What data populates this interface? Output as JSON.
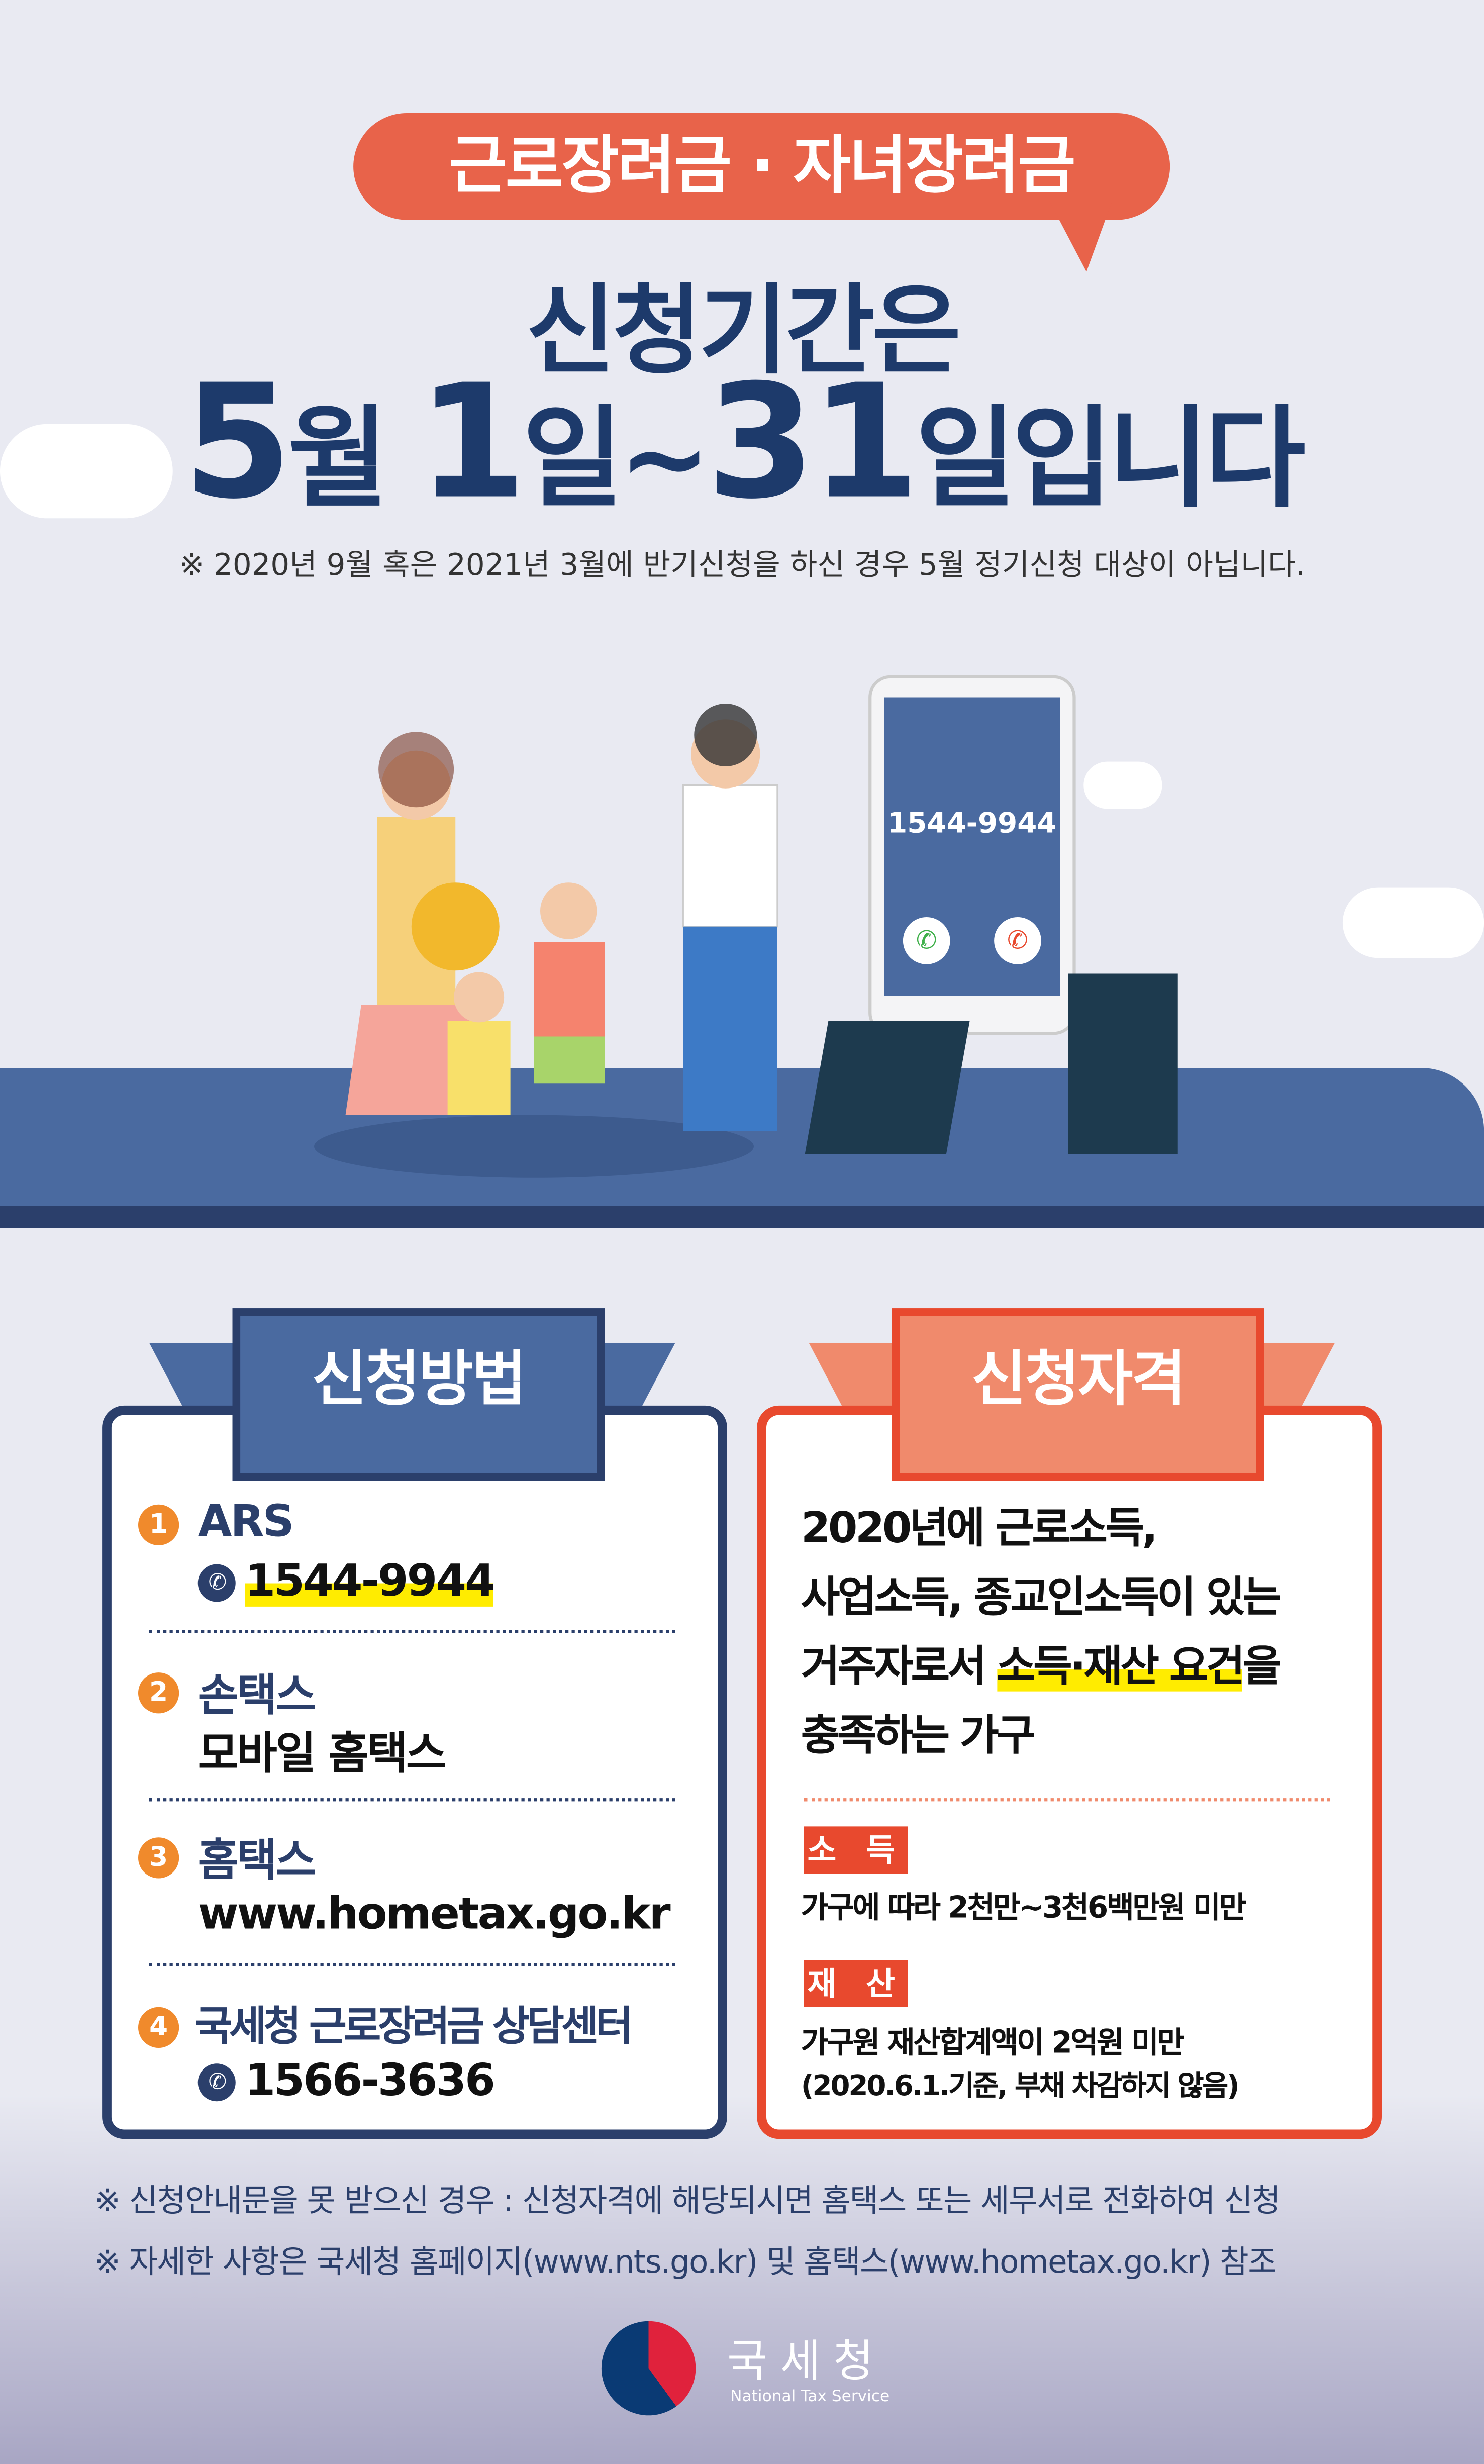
{
  "header": {
    "bubble": "근로장려금 · 자녀장려금",
    "title_line1": "신청기간은",
    "period": {
      "m": "5",
      "m_unit": "월",
      "d1": "1",
      "d1_unit": "일~",
      "d2": "31",
      "d2_unit": "일입니다"
    },
    "note": "※ 2020년 9월 혹은 2021년 3월에 반기신청을 하신 경우 5월 정기신청 대상이 아닙니다."
  },
  "illustration": {
    "phone_number": "1544-9944"
  },
  "method": {
    "title": "신청방법",
    "items": [
      {
        "num": "1",
        "title": "ARS",
        "detail": "1544-9944",
        "icon": "phone-icon"
      },
      {
        "num": "2",
        "title": "손택스",
        "detail": "모바일 홈택스"
      },
      {
        "num": "3",
        "title": "홈택스",
        "detail": "www.hometax.go.kr"
      },
      {
        "num": "4",
        "title": "국세청 근로장려금 상담센터",
        "detail": "1566-3636",
        "icon": "phone-icon"
      }
    ]
  },
  "eligibility": {
    "title": "신청자격",
    "line1": "2020년에 근로소득,",
    "line2": "사업소득, 종교인소득이 있는",
    "line3_pre": "거주자로서 ",
    "line3_hl": "소득·재산 요건",
    "line3_post": "을",
    "line4": "충족하는 가구",
    "income_tag": "소 득",
    "income_text": "가구에 따라 2천만~3천6백만원 미만",
    "asset_tag": "재 산",
    "asset_text": "가구원 재산합계액이 2억원 미만",
    "asset_note": "(2020.6.1.기준, 부채 차감하지 않음)"
  },
  "footer": {
    "note1": "※ 신청안내문을 못 받으신 경우 : 신청자격에 해당되시면 홈택스 또는 세무서로 전화하여 신청",
    "note2": "※ 자세한 사항은 국세청 홈페이지(www.nts.go.kr) 및 홈택스(www.hometax.go.kr) 참조",
    "logo_kr": "국세청",
    "logo_en": "National Tax Service"
  },
  "colors": {
    "navy": "#1d3a6b",
    "orange": "#e8634a",
    "red": "#e8492e",
    "blue": "#4a6aa0",
    "yellow": "#ffec00"
  }
}
